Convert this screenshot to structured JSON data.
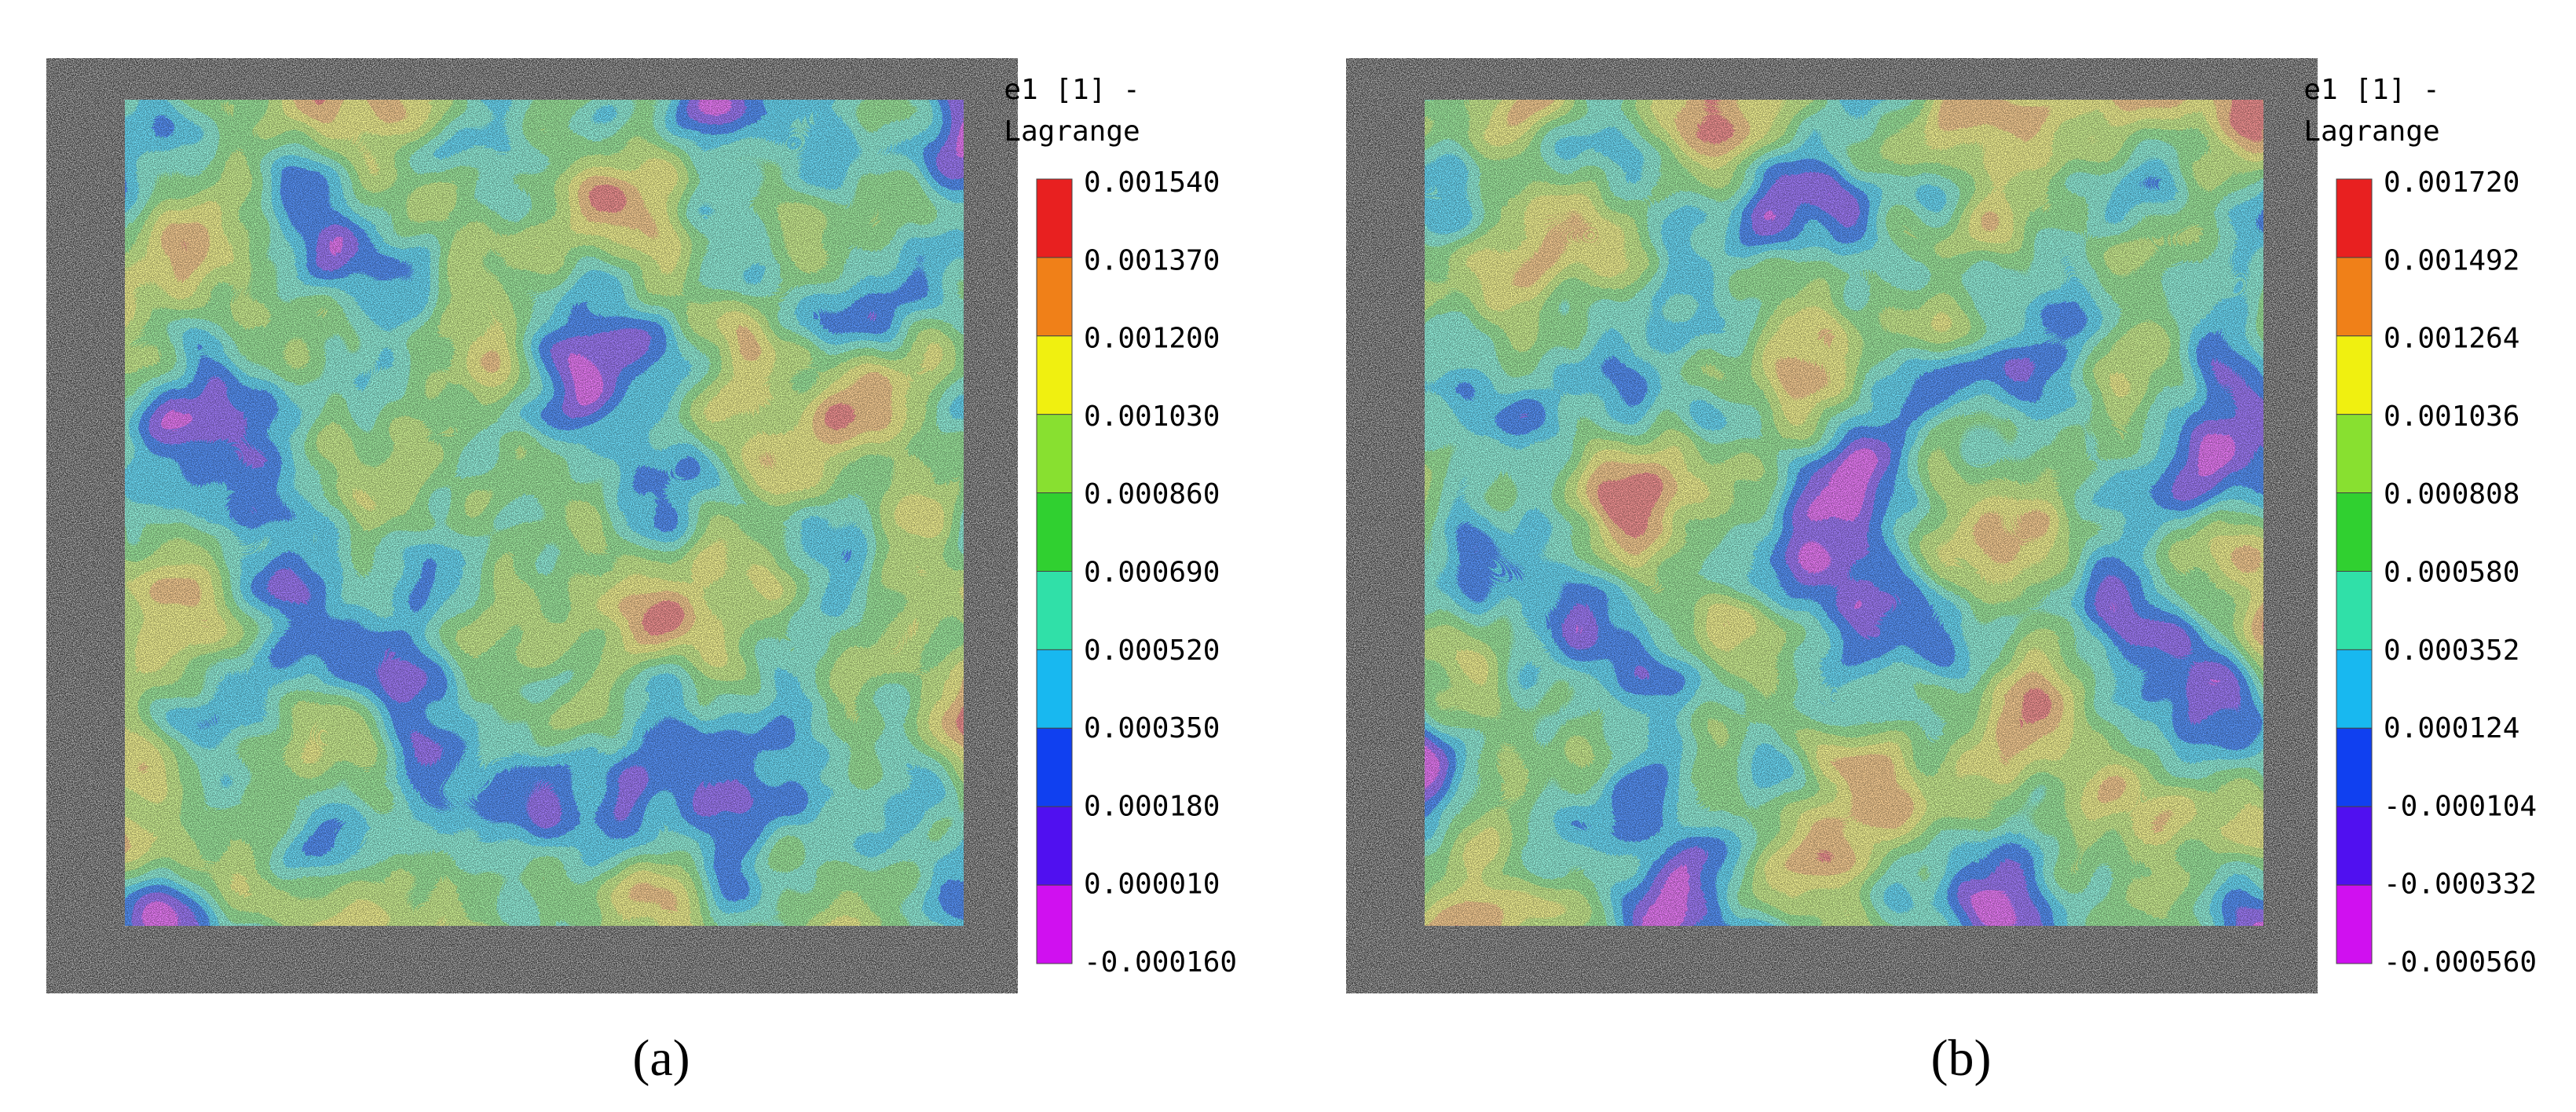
{
  "panels": [
    {
      "label": "(a)",
      "colorbar": {
        "title_lines": [
          "e1 [1] -",
          "Lagrange"
        ],
        "ticks": [
          "0.001540",
          "0.001370",
          "0.001200",
          "0.001030",
          "0.000860",
          "0.000690",
          "0.000520",
          "0.000350",
          "0.000180",
          "0.000010",
          "-0.000160"
        ]
      }
    },
    {
      "label": "(b)",
      "colorbar": {
        "title_lines": [
          "e1 [1] -",
          "Lagrange"
        ],
        "ticks": [
          "0.001720",
          "0.001492",
          "0.001264",
          "0.001036",
          "0.000808",
          "0.000580",
          "0.000352",
          "0.000124",
          "-0.000104",
          "-0.000332",
          "-0.000560"
        ]
      }
    }
  ]
}
